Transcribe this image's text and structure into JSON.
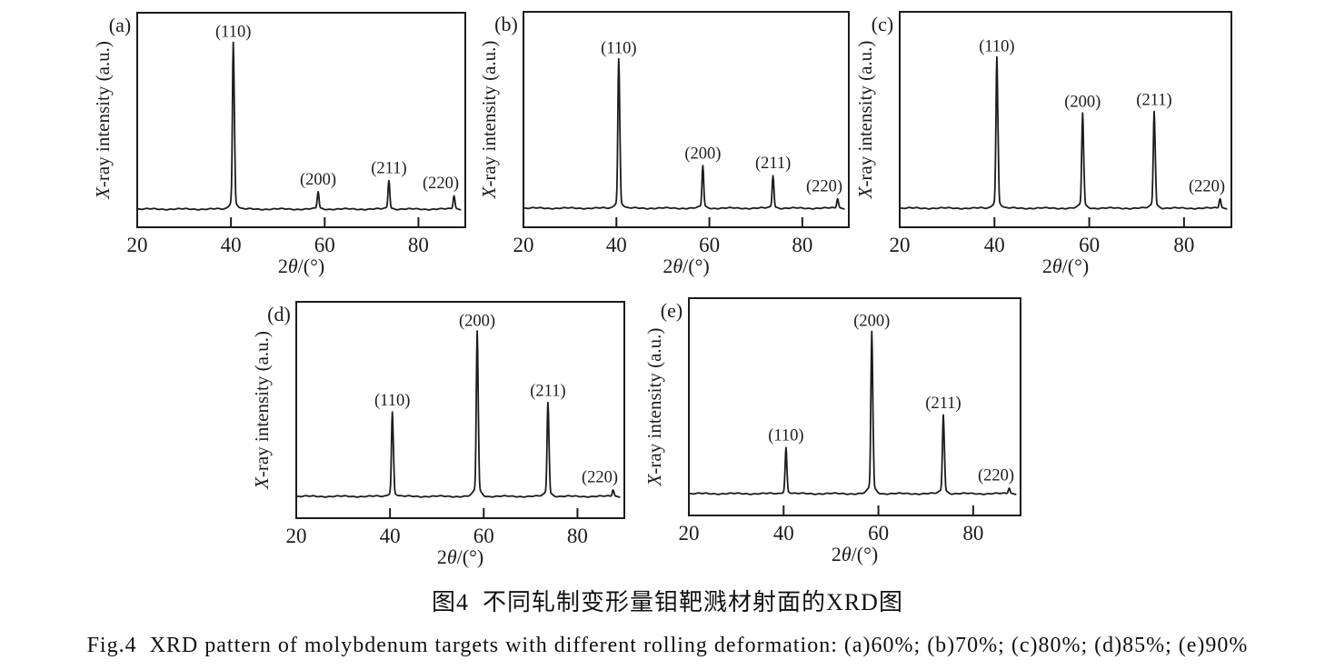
{
  "figure": {
    "caption_zh": "图4  不同轧制变形量钼靶溅材射面的XRD图",
    "caption_en": "Fig.4  XRD pattern of molybdenum targets with different rolling deformation: (a)60%; (b)70%; (c)80%; (d)85%; (e)90%"
  },
  "chart_data": [
    {
      "type": "line",
      "key": "a",
      "panel": "(a)",
      "rolling_deformation": "60%",
      "title": "",
      "xlabel": "2θ/(°)",
      "ylabel": "X-ray intensity (a.u.)",
      "xlim": [
        20,
        90
      ],
      "xticks": [
        "20",
        "40",
        "60",
        "80"
      ],
      "grid": "off",
      "peaks": [
        {
          "hkl": "(110)",
          "two_theta": 40.5,
          "rel_intensity": 0.86
        },
        {
          "hkl": "(200)",
          "two_theta": 58.6,
          "rel_intensity": 0.09
        },
        {
          "hkl": "(211)",
          "two_theta": 73.7,
          "rel_intensity": 0.15
        },
        {
          "hkl": "(220)",
          "two_theta": 87.6,
          "rel_intensity": 0.07
        }
      ]
    },
    {
      "type": "line",
      "key": "b",
      "panel": "(b)",
      "rolling_deformation": "70%",
      "title": "",
      "xlabel": "2θ/(°)",
      "ylabel": "X-ray intensity (a.u.)",
      "xlim": [
        20,
        90
      ],
      "xticks": [
        "20",
        "40",
        "60",
        "80"
      ],
      "grid": "off",
      "peaks": [
        {
          "hkl": "(110)",
          "two_theta": 40.5,
          "rel_intensity": 0.77
        },
        {
          "hkl": "(200)",
          "two_theta": 58.6,
          "rel_intensity": 0.22
        },
        {
          "hkl": "(211)",
          "two_theta": 73.7,
          "rel_intensity": 0.17
        },
        {
          "hkl": "(220)",
          "two_theta": 87.6,
          "rel_intensity": 0.05
        }
      ]
    },
    {
      "type": "line",
      "key": "c",
      "panel": "(c)",
      "rolling_deformation": "80%",
      "title": "",
      "xlabel": "2θ/(°)",
      "ylabel": "X-ray intensity (a.u.)",
      "xlim": [
        20,
        90
      ],
      "xticks": [
        "20",
        "40",
        "60",
        "80"
      ],
      "grid": "off",
      "peaks": [
        {
          "hkl": "(110)",
          "two_theta": 40.5,
          "rel_intensity": 0.78
        },
        {
          "hkl": "(200)",
          "two_theta": 58.6,
          "rel_intensity": 0.49
        },
        {
          "hkl": "(211)",
          "two_theta": 73.7,
          "rel_intensity": 0.5
        },
        {
          "hkl": "(220)",
          "two_theta": 87.6,
          "rel_intensity": 0.05
        }
      ]
    },
    {
      "type": "line",
      "key": "d",
      "panel": "(d)",
      "rolling_deformation": "85%",
      "title": "",
      "xlabel": "2θ/(°)",
      "ylabel": "X-ray intensity (a.u.)",
      "xlim": [
        20,
        90
      ],
      "xticks": [
        "20",
        "40",
        "60",
        "80"
      ],
      "grid": "off",
      "peaks": [
        {
          "hkl": "(110)",
          "two_theta": 40.5,
          "rel_intensity": 0.44
        },
        {
          "hkl": "(200)",
          "two_theta": 58.6,
          "rel_intensity": 0.86
        },
        {
          "hkl": "(211)",
          "two_theta": 73.7,
          "rel_intensity": 0.49
        },
        {
          "hkl": "(220)",
          "two_theta": 87.6,
          "rel_intensity": 0.035
        }
      ]
    },
    {
      "type": "line",
      "key": "e",
      "panel": "(e)",
      "rolling_deformation": "90%",
      "title": "",
      "xlabel": "2θ/(°)",
      "ylabel": "X-ray intensity (a.u.)",
      "xlim": [
        20,
        90
      ],
      "xticks": [
        "20",
        "40",
        "60",
        "80"
      ],
      "grid": "off",
      "peaks": [
        {
          "hkl": "(110)",
          "two_theta": 40.5,
          "rel_intensity": 0.24
        },
        {
          "hkl": "(200)",
          "two_theta": 58.6,
          "rel_intensity": 0.84
        },
        {
          "hkl": "(211)",
          "two_theta": 73.7,
          "rel_intensity": 0.41
        },
        {
          "hkl": "(220)",
          "two_theta": 87.6,
          "rel_intensity": 0.03
        }
      ]
    }
  ]
}
